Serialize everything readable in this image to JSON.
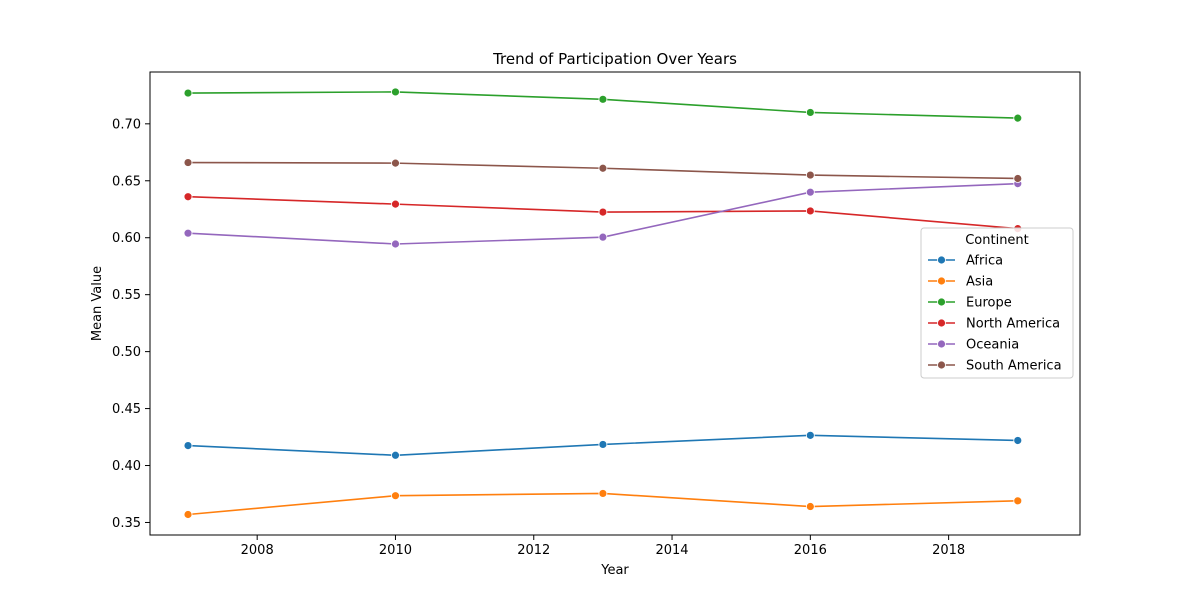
{
  "chart_data": {
    "type": "line",
    "title": "Trend of Participation Over Years",
    "xlabel": "Year",
    "ylabel": "Mean Value",
    "x": [
      2007,
      2010,
      2013,
      2016,
      2019
    ],
    "xlim": [
      2006.45,
      2019.9
    ],
    "ylim": [
      0.339,
      0.7455
    ],
    "xticks": [
      2008,
      2010,
      2012,
      2014,
      2016,
      2018
    ],
    "yticks": [
      0.35,
      0.4,
      0.45,
      0.5,
      0.55,
      0.6,
      0.65,
      0.7
    ],
    "grid": false,
    "legend": {
      "title": "Continent",
      "placement": "right"
    },
    "series": [
      {
        "name": "Africa",
        "color": "#1f77b4",
        "values": [
          0.4175,
          0.409,
          0.4185,
          0.4265,
          0.422
        ]
      },
      {
        "name": "Asia",
        "color": "#ff7f0e",
        "values": [
          0.357,
          0.3735,
          0.3755,
          0.364,
          0.369
        ]
      },
      {
        "name": "Europe",
        "color": "#2ca02c",
        "values": [
          0.727,
          0.728,
          0.7215,
          0.71,
          0.705
        ]
      },
      {
        "name": "North America",
        "color": "#d62728",
        "values": [
          0.636,
          0.6295,
          0.6225,
          0.6235,
          0.608
        ]
      },
      {
        "name": "Oceania",
        "color": "#9467bd",
        "values": [
          0.604,
          0.5945,
          0.6005,
          0.64,
          0.6475
        ]
      },
      {
        "name": "South America",
        "color": "#8c564b",
        "values": [
          0.666,
          0.6655,
          0.661,
          0.655,
          0.652
        ]
      }
    ]
  }
}
